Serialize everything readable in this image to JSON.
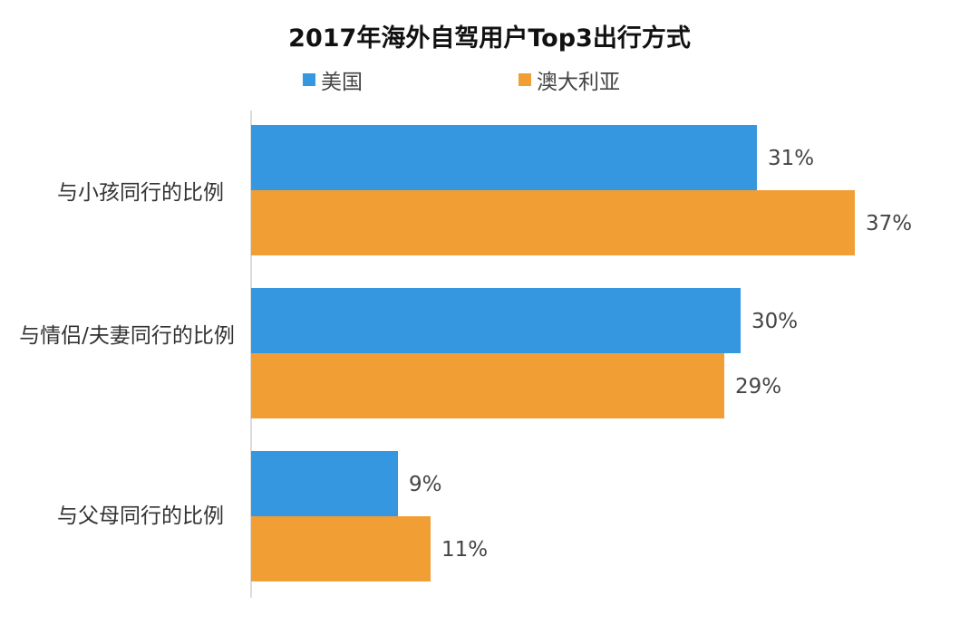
{
  "chart_data": {
    "type": "bar",
    "orientation": "horizontal",
    "title": "2017年海外自驾用户Top3出行方式",
    "categories": [
      "与小孩同行的比例",
      "与情侣/夫妻同行的比例",
      "与父母同行的比例"
    ],
    "series": [
      {
        "name": "美国",
        "color": "#3597e0",
        "values": [
          31,
          30,
          9
        ]
      },
      {
        "name": "澳大利亚",
        "color": "#f19e35",
        "values": [
          37,
          29,
          11
        ]
      }
    ],
    "value_suffix": "%",
    "xlim": [
      0,
      45
    ],
    "grid": false,
    "legend": "top"
  }
}
